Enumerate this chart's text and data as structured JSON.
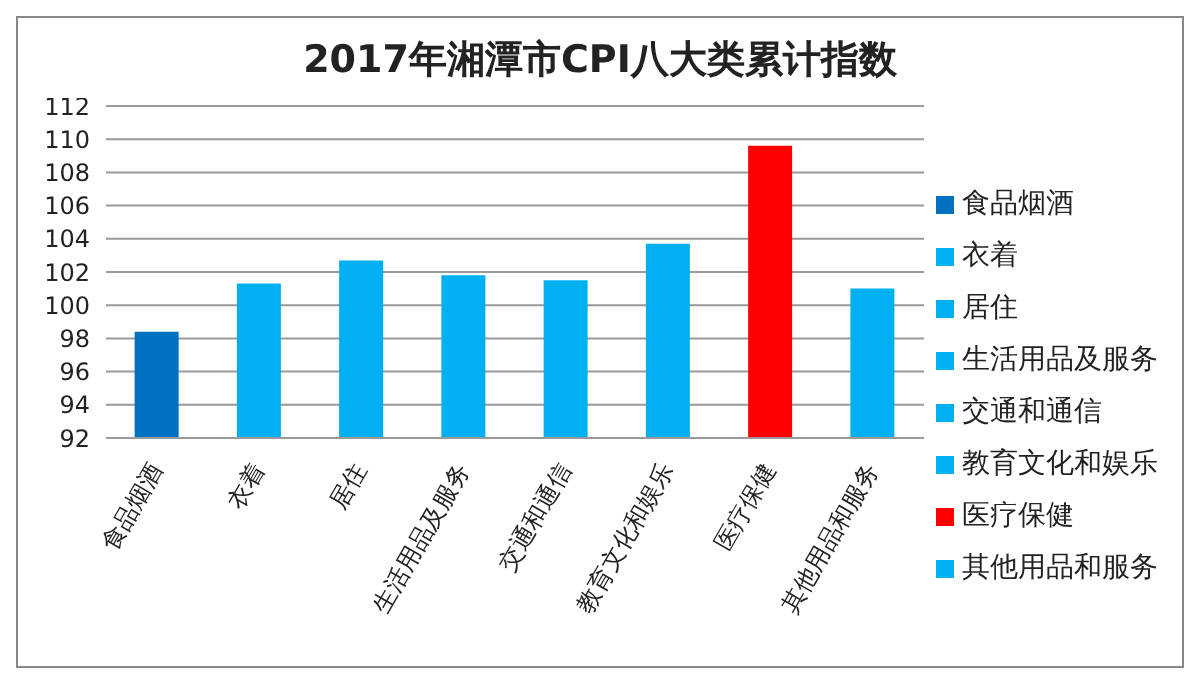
{
  "chart_data": {
    "type": "bar",
    "title": "2017年湘潭市CPI八大类累计指数",
    "categories": [
      "食品烟酒",
      "衣着",
      "居住",
      "生活用品及服务",
      "交通和通信",
      "教育文化和娱乐",
      "医疗保健",
      "其他用品和服务"
    ],
    "series": [
      {
        "name": "食品烟酒",
        "color": "#0070c0",
        "values": [
          98.4,
          null,
          null,
          null,
          null,
          null,
          null,
          null
        ]
      },
      {
        "name": "衣着",
        "color": "#00b0f0",
        "values": [
          null,
          101.3,
          null,
          null,
          null,
          null,
          null,
          null
        ]
      },
      {
        "name": "居住",
        "color": "#00b0f0",
        "values": [
          null,
          null,
          102.7,
          null,
          null,
          null,
          null,
          null
        ]
      },
      {
        "name": "生活用品及服务",
        "color": "#00b0f0",
        "values": [
          null,
          null,
          null,
          101.8,
          null,
          null,
          null,
          null
        ]
      },
      {
        "name": "交通和通信",
        "color": "#00b0f0",
        "values": [
          null,
          null,
          null,
          null,
          101.5,
          null,
          null,
          null
        ]
      },
      {
        "name": "教育文化和娱乐",
        "color": "#00b0f0",
        "values": [
          null,
          null,
          null,
          null,
          null,
          103.7,
          null,
          null
        ]
      },
      {
        "name": "医疗保健",
        "color": "#ff0000",
        "values": [
          null,
          null,
          null,
          null,
          null,
          null,
          109.6,
          null
        ]
      },
      {
        "name": "其他用品和服务",
        "color": "#00b0f0",
        "values": [
          null,
          null,
          null,
          null,
          null,
          null,
          null,
          101.0
        ]
      }
    ],
    "stacked": true,
    "ylim": [
      92,
      112
    ],
    "yticks": [
      92,
      94,
      96,
      98,
      100,
      102,
      104,
      106,
      108,
      110,
      112
    ],
    "grid": "y",
    "legend": "right"
  }
}
